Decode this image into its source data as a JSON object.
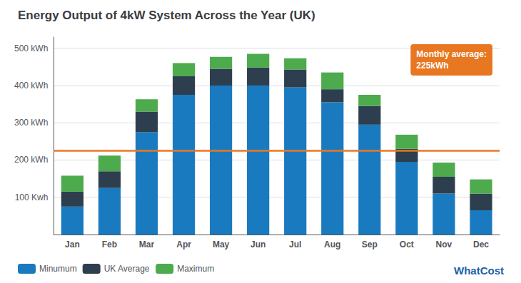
{
  "chart_data": {
    "type": "bar",
    "title": "Energy Output of 4kW System Across the Year (UK)",
    "categories": [
      "Jan",
      "Feb",
      "Mar",
      "Apr",
      "May",
      "Jun",
      "Jul",
      "Aug",
      "Sep",
      "Oct",
      "Nov",
      "Dec"
    ],
    "stacked": true,
    "series": [
      {
        "name": "Minumum",
        "color": "#1a7abf",
        "values": [
          75,
          125,
          275,
          375,
          400,
          400,
          395,
          355,
          295,
          195,
          110,
          65
        ]
      },
      {
        "name": "UK Average",
        "color": "#2d3f4f",
        "values": [
          40,
          45,
          55,
          50,
          45,
          48,
          48,
          35,
          50,
          35,
          45,
          45
        ]
      },
      {
        "name": "Maximum",
        "color": "#4daa4d",
        "values": [
          43,
          42,
          33,
          35,
          32,
          37,
          30,
          45,
          30,
          38,
          38,
          38
        ]
      }
    ],
    "ylim": [
      0,
      530
    ],
    "yticks": [
      {
        "value": 0,
        "label": null
      },
      {
        "value": 100,
        "label": "100 Kwh"
      },
      {
        "value": 200,
        "label": "200 kWh"
      },
      {
        "value": 300,
        "label": "300 kWh"
      },
      {
        "value": 400,
        "label": "400 kWh"
      },
      {
        "value": 500,
        "label": "500 kWh"
      }
    ],
    "grid": true,
    "legend": "lower left",
    "average_line": {
      "value": 225,
      "color": "#e87722",
      "label": "Monthly average:\n225kWh"
    },
    "watermark": "WhatCost"
  }
}
